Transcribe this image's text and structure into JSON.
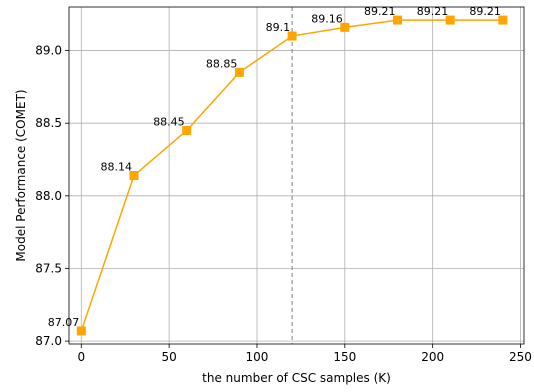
{
  "chart_data": {
    "type": "line",
    "title": "",
    "xlabel": "the number of CSC samples (K)",
    "ylabel": "Model Performance (COMET)",
    "xlim": [
      -7,
      252
    ],
    "ylim": [
      86.98,
      89.3
    ],
    "xticks": [
      0,
      50,
      100,
      150,
      200,
      250
    ],
    "yticks": [
      87.0,
      87.5,
      88.0,
      88.5,
      89.0
    ],
    "xtick_labels": [
      "0",
      "50",
      "100",
      "150",
      "200",
      "250"
    ],
    "ytick_labels": [
      "87.0",
      "87.5",
      "88.0",
      "88.5",
      "89.0"
    ],
    "grid": true,
    "series": [
      {
        "color": "#FFA500",
        "marker": "square",
        "x": [
          0,
          30,
          60,
          90,
          120,
          150,
          180,
          210,
          240
        ],
        "y": [
          87.07,
          88.14,
          88.45,
          88.85,
          89.1,
          89.16,
          89.21,
          89.21,
          89.21
        ],
        "labels": [
          "87.07",
          "88.14",
          "88.45",
          "88.85",
          "89.1",
          "89.16",
          "89.21",
          "89.21",
          "89.21"
        ]
      }
    ],
    "reference_line": {
      "orientation": "vertical",
      "x": 120,
      "style": "dashed",
      "color": "#808080"
    }
  }
}
